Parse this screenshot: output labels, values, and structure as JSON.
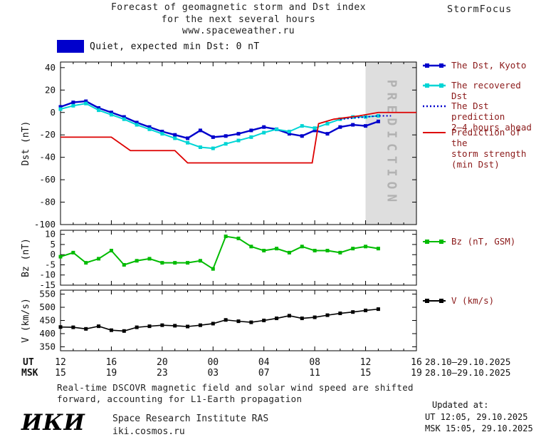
{
  "header": {
    "title": "Forecast of geomagnetic storm and Dst index\nfor the next several hours\nwww.spaceweather.ru",
    "brand": "StormFocus"
  },
  "banner": {
    "text": "Quiet, expected min Dst: 0 nT",
    "swatch_color": "#0000cc"
  },
  "legend": {
    "dst_kyoto": "The Dst, Kyoto",
    "recovered": "The recovered Dst",
    "prediction": "The Dst prediction\n2–4 hours ahead",
    "storm": "Prediction of the\nstorm strength\n(min Dst)",
    "bz": "Bz (nT, GSM)",
    "v": "V (km/s)"
  },
  "chart_data": {
    "type": "line",
    "xaxis": {
      "xlim": [
        12,
        40
      ],
      "ticks": [
        12,
        16,
        20,
        24,
        28,
        32,
        36,
        40
      ],
      "ut_labels": [
        "12",
        "16",
        "20",
        "00",
        "04",
        "08",
        "12",
        "16"
      ],
      "msk_labels": [
        "15",
        "19",
        "23",
        "03",
        "07",
        "11",
        "15",
        "19"
      ],
      "ut_prefix": "UT",
      "msk_prefix": "MSK",
      "date_range": "28.10–29.10.2025"
    },
    "panels": [
      {
        "id": "dst",
        "ylabel": "Dst (nT)",
        "ylim": [
          -100,
          45
        ],
        "yticks": [
          40,
          20,
          0,
          -20,
          -40,
          -60,
          -80,
          -100
        ],
        "prediction_band": {
          "range": [
            36,
            40
          ],
          "label": "PREDICTION",
          "color": "#dedede",
          "label_color": "#b2b2b2"
        },
        "series": [
          {
            "name": "The Dst, Kyoto",
            "color": "#0000cc",
            "marker": true,
            "width": 2.4,
            "x": [
              12,
              13,
              14,
              15,
              16,
              17,
              18,
              19,
              20,
              21,
              22,
              23,
              24,
              25,
              26,
              27,
              28,
              29,
              30,
              31,
              32,
              33,
              34,
              35,
              36,
              37
            ],
            "y": [
              5,
              9,
              10,
              4,
              0,
              -4,
              -9,
              -13,
              -17,
              -20,
              -23,
              -16,
              -22,
              -21,
              -19,
              -16,
              -13,
              -15,
              -19,
              -21,
              -16,
              -19,
              -13,
              -11,
              -12,
              -8
            ]
          },
          {
            "name": "The recovered Dst",
            "color": "#00d5d5",
            "marker": true,
            "width": 2,
            "x": [
              12,
              13,
              14,
              15,
              16,
              17,
              18,
              19,
              20,
              21,
              22,
              23,
              24,
              25,
              26,
              27,
              28,
              29,
              30,
              31,
              32,
              33,
              34,
              35,
              36,
              37
            ],
            "y": [
              3,
              6,
              8,
              2,
              -2,
              -6,
              -11,
              -15,
              -19,
              -23,
              -27,
              -31,
              -32,
              -28,
              -25,
              -22,
              -18,
              -15,
              -17,
              -12,
              -14,
              -10,
              -6,
              -4,
              -4,
              -3
            ]
          },
          {
            "name": "The Dst prediction 2–4 hours ahead",
            "color": "#0000cc",
            "dash": true,
            "width": 2,
            "x": [
              34,
              35,
              36,
              37,
              38
            ],
            "y": [
              -6,
              -5,
              -4,
              -3,
              -3
            ]
          },
          {
            "name": "Prediction of the storm strength (min Dst)",
            "color": "#dd0000",
            "width": 1.8,
            "x": [
              12,
              16,
              17.5,
              21,
              22,
              31.8,
              32.3,
              33.5,
              35.5,
              37,
              40
            ],
            "y": [
              -22,
              -22,
              -34,
              -34,
              -45,
              -45,
              -10,
              -6,
              -3,
              0,
              0
            ]
          }
        ]
      },
      {
        "id": "bz",
        "ylabel": "Bz (nT)",
        "ylim": [
          -15,
          12
        ],
        "yticks": [
          10,
          5,
          0,
          -5,
          -10,
          -15
        ],
        "series": [
          {
            "name": "Bz (nT, GSM)",
            "color": "#00bb00",
            "marker": true,
            "width": 2,
            "x": [
              12,
              13,
              14,
              15,
              16,
              17,
              18,
              19,
              20,
              21,
              22,
              23,
              24,
              25,
              26,
              27,
              28,
              29,
              30,
              31,
              32,
              33,
              34,
              35,
              36,
              37
            ],
            "y": [
              -1,
              1,
              -4,
              -2,
              2,
              -5,
              -3,
              -2,
              -4,
              -4,
              -4,
              -3,
              -7,
              9,
              8,
              4,
              2,
              3,
              1,
              4,
              2,
              2,
              1,
              3,
              4,
              3
            ]
          }
        ]
      },
      {
        "id": "v",
        "ylabel": "V (km/s)",
        "ylim": [
          335,
          565
        ],
        "yticks": [
          350,
          400,
          450,
          500,
          550
        ],
        "series": [
          {
            "name": "V (km/s)",
            "color": "#000000",
            "marker": true,
            "width": 1.6,
            "x": [
              12,
              13,
              14,
              15,
              16,
              17,
              18,
              19,
              20,
              21,
              22,
              23,
              24,
              25,
              26,
              27,
              28,
              29,
              30,
              31,
              32,
              33,
              34,
              35,
              36,
              37
            ],
            "y": [
              425,
              424,
              418,
              428,
              413,
              410,
              424,
              428,
              432,
              430,
              427,
              432,
              438,
              452,
              447,
              443,
              450,
              458,
              468,
              458,
              462,
              470,
              477,
              482,
              488,
              493
            ]
          }
        ]
      }
    ]
  },
  "footer": {
    "note": "Real-time DSCOVR magnetic field and solar wind speed are shifted\nforward, accounting for L1-Earth propagation",
    "updated_label": "Updated at:",
    "updated_ut": "UT  12:05, 29.10.2025",
    "updated_msk": "MSK 15:05, 29.10.2025",
    "logo": "ИКИ",
    "institute": "Space Research Institute RAS",
    "site": "iki.cosmos.ru"
  }
}
